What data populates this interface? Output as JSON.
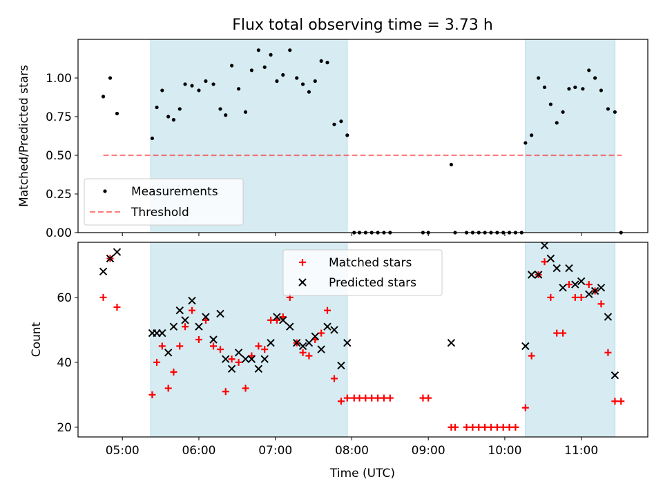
{
  "title": "Flux total observing time = 3.73 h",
  "colors": {
    "shade": "#add8e6",
    "measurement": "#000000",
    "threshold": "#ff0000",
    "matched": "#ff0000",
    "predicted": "#000000"
  },
  "chart_data": [
    {
      "type": "scatter",
      "ylabel": "Matched/Predicted stars",
      "ylim": [
        0,
        1.25
      ],
      "yticks": [
        0.0,
        0.25,
        0.5,
        0.75,
        1.0
      ],
      "ytick_labels": [
        "0.00",
        "0.25",
        "0.50",
        "0.75",
        "1.00"
      ],
      "xlim_hours": [
        4.42,
        11.87
      ],
      "xticks_hours": [
        5,
        6,
        7,
        8,
        9,
        10,
        11
      ],
      "shaded_intervals_hours": [
        [
          5.37,
          7.94
        ],
        [
          10.27,
          11.44
        ]
      ],
      "legend": {
        "placement": "lower left",
        "measurements": "Measurements",
        "threshold": "Threshold"
      },
      "threshold": {
        "value": 0.5,
        "x_range_hours": [
          4.75,
          11.53
        ]
      },
      "series": [
        {
          "name": "Measurements",
          "points": [
            [
              4.75,
              0.88
            ],
            [
              4.84,
              1.0
            ],
            [
              4.93,
              0.77
            ],
            [
              5.39,
              0.61
            ],
            [
              5.45,
              0.81
            ],
            [
              5.52,
              0.92
            ],
            [
              5.6,
              0.75
            ],
            [
              5.67,
              0.73
            ],
            [
              5.75,
              0.8
            ],
            [
              5.82,
              0.96
            ],
            [
              5.91,
              0.95
            ],
            [
              6.0,
              0.92
            ],
            [
              6.09,
              0.98
            ],
            [
              6.19,
              0.96
            ],
            [
              6.28,
              0.8
            ],
            [
              6.35,
              0.76
            ],
            [
              6.43,
              1.08
            ],
            [
              6.52,
              0.93
            ],
            [
              6.61,
              0.78
            ],
            [
              6.69,
              1.05
            ],
            [
              6.78,
              1.18
            ],
            [
              6.86,
              1.07
            ],
            [
              6.94,
              1.15
            ],
            [
              7.02,
              0.98
            ],
            [
              7.1,
              1.02
            ],
            [
              7.19,
              1.18
            ],
            [
              7.28,
              1.0
            ],
            [
              7.36,
              0.96
            ],
            [
              7.44,
              0.91
            ],
            [
              7.52,
              0.98
            ],
            [
              7.6,
              1.11
            ],
            [
              7.68,
              1.1
            ],
            [
              7.77,
              0.7
            ],
            [
              7.86,
              0.72
            ],
            [
              7.94,
              0.63
            ],
            [
              8.03,
              0
            ],
            [
              8.1,
              0
            ],
            [
              8.18,
              0
            ],
            [
              8.26,
              0
            ],
            [
              8.34,
              0
            ],
            [
              8.42,
              0
            ],
            [
              8.5,
              0
            ],
            [
              8.93,
              0
            ],
            [
              9.0,
              0
            ],
            [
              9.3,
              0.44
            ],
            [
              9.35,
              0
            ],
            [
              9.5,
              0
            ],
            [
              9.58,
              0
            ],
            [
              9.66,
              0
            ],
            [
              9.74,
              0
            ],
            [
              9.82,
              0
            ],
            [
              9.9,
              0
            ],
            [
              9.98,
              0
            ],
            [
              10.06,
              0
            ],
            [
              10.14,
              0
            ],
            [
              10.22,
              0
            ],
            [
              10.27,
              0.58
            ],
            [
              10.35,
              0.63
            ],
            [
              10.44,
              1.0
            ],
            [
              10.52,
              0.94
            ],
            [
              10.6,
              0.83
            ],
            [
              10.68,
              0.71
            ],
            [
              10.76,
              0.78
            ],
            [
              10.84,
              0.93
            ],
            [
              10.92,
              0.94
            ],
            [
              11.02,
              0.93
            ],
            [
              11.1,
              1.05
            ],
            [
              11.18,
              1.0
            ],
            [
              11.26,
              0.92
            ],
            [
              11.35,
              0.8
            ],
            [
              11.44,
              0.78
            ],
            [
              11.52,
              0
            ]
          ]
        }
      ]
    },
    {
      "type": "scatter",
      "xlabel": "Time (UTC)",
      "ylabel": "Count",
      "ylim": [
        17,
        77
      ],
      "yticks": [
        20,
        40,
        60
      ],
      "ytick_labels": [
        "20",
        "40",
        "60"
      ],
      "xlim_hours": [
        4.42,
        11.87
      ],
      "xticks_hours": [
        5,
        6,
        7,
        8,
        9,
        10,
        11
      ],
      "xtick_labels": [
        "05:00",
        "06:00",
        "07:00",
        "08:00",
        "09:00",
        "10:00",
        "11:00"
      ],
      "shaded_intervals_hours": [
        [
          5.37,
          7.94
        ],
        [
          10.27,
          11.44
        ]
      ],
      "legend": {
        "placement": "upper center",
        "matched": "Matched stars",
        "predicted": "Predicted stars"
      },
      "series": [
        {
          "name": "Matched stars",
          "marker": "plus",
          "points": [
            [
              4.75,
              60
            ],
            [
              4.84,
              72
            ],
            [
              4.93,
              57
            ],
            [
              5.39,
              30
            ],
            [
              5.45,
              40
            ],
            [
              5.52,
              45
            ],
            [
              5.6,
              32
            ],
            [
              5.67,
              37
            ],
            [
              5.75,
              45
            ],
            [
              5.82,
              51
            ],
            [
              5.91,
              56
            ],
            [
              6.0,
              47
            ],
            [
              6.09,
              53
            ],
            [
              6.19,
              45
            ],
            [
              6.28,
              44
            ],
            [
              6.35,
              31
            ],
            [
              6.43,
              41
            ],
            [
              6.52,
              40
            ],
            [
              6.61,
              32
            ],
            [
              6.69,
              42
            ],
            [
              6.78,
              45
            ],
            [
              6.86,
              44
            ],
            [
              6.94,
              53
            ],
            [
              7.02,
              53
            ],
            [
              7.1,
              54
            ],
            [
              7.19,
              60
            ],
            [
              7.28,
              46
            ],
            [
              7.36,
              43
            ],
            [
              7.44,
              42
            ],
            [
              7.52,
              47
            ],
            [
              7.6,
              49
            ],
            [
              7.68,
              56
            ],
            [
              7.77,
              35
            ],
            [
              7.86,
              28
            ],
            [
              7.94,
              29
            ],
            [
              8.03,
              29
            ],
            [
              8.1,
              29
            ],
            [
              8.18,
              29
            ],
            [
              8.26,
              29
            ],
            [
              8.34,
              29
            ],
            [
              8.42,
              29
            ],
            [
              8.5,
              29
            ],
            [
              8.93,
              29
            ],
            [
              9.0,
              29
            ],
            [
              9.3,
              20
            ],
            [
              9.35,
              20
            ],
            [
              9.5,
              20
            ],
            [
              9.58,
              20
            ],
            [
              9.66,
              20
            ],
            [
              9.74,
              20
            ],
            [
              9.82,
              20
            ],
            [
              9.9,
              20
            ],
            [
              9.98,
              20
            ],
            [
              10.06,
              20
            ],
            [
              10.14,
              20
            ],
            [
              10.27,
              26
            ],
            [
              10.35,
              42
            ],
            [
              10.44,
              67
            ],
            [
              10.52,
              71
            ],
            [
              10.6,
              60
            ],
            [
              10.68,
              49
            ],
            [
              10.76,
              49
            ],
            [
              10.84,
              64
            ],
            [
              10.92,
              60
            ],
            [
              11.0,
              60
            ],
            [
              11.1,
              64
            ],
            [
              11.18,
              62
            ],
            [
              11.26,
              58
            ],
            [
              11.35,
              43
            ],
            [
              11.44,
              28
            ],
            [
              11.52,
              28
            ]
          ]
        },
        {
          "name": "Predicted stars",
          "marker": "x",
          "points": [
            [
              4.75,
              68
            ],
            [
              4.84,
              72
            ],
            [
              4.93,
              74
            ],
            [
              5.39,
              49
            ],
            [
              5.45,
              49
            ],
            [
              5.52,
              49
            ],
            [
              5.6,
              43
            ],
            [
              5.67,
              51
            ],
            [
              5.75,
              56
            ],
            [
              5.82,
              53
            ],
            [
              5.91,
              59
            ],
            [
              6.0,
              51
            ],
            [
              6.09,
              54
            ],
            [
              6.19,
              47
            ],
            [
              6.28,
              55
            ],
            [
              6.35,
              41
            ],
            [
              6.43,
              38
            ],
            [
              6.52,
              43
            ],
            [
              6.61,
              41
            ],
            [
              6.69,
              41
            ],
            [
              6.78,
              38
            ],
            [
              6.86,
              41
            ],
            [
              6.94,
              46
            ],
            [
              7.02,
              54
            ],
            [
              7.1,
              53
            ],
            [
              7.19,
              51
            ],
            [
              7.28,
              46
            ],
            [
              7.36,
              45
            ],
            [
              7.44,
              46
            ],
            [
              7.52,
              48
            ],
            [
              7.6,
              44
            ],
            [
              7.68,
              51
            ],
            [
              7.77,
              50
            ],
            [
              7.86,
              39
            ],
            [
              7.94,
              46
            ],
            [
              9.3,
              46
            ],
            [
              10.27,
              45
            ],
            [
              10.35,
              67
            ],
            [
              10.44,
              67
            ],
            [
              10.52,
              76
            ],
            [
              10.6,
              72
            ],
            [
              10.68,
              69
            ],
            [
              10.76,
              63
            ],
            [
              10.84,
              69
            ],
            [
              10.92,
              64
            ],
            [
              11.0,
              65
            ],
            [
              11.1,
              61
            ],
            [
              11.18,
              62
            ],
            [
              11.26,
              63
            ],
            [
              11.35,
              54
            ],
            [
              11.44,
              36
            ]
          ]
        }
      ]
    }
  ]
}
